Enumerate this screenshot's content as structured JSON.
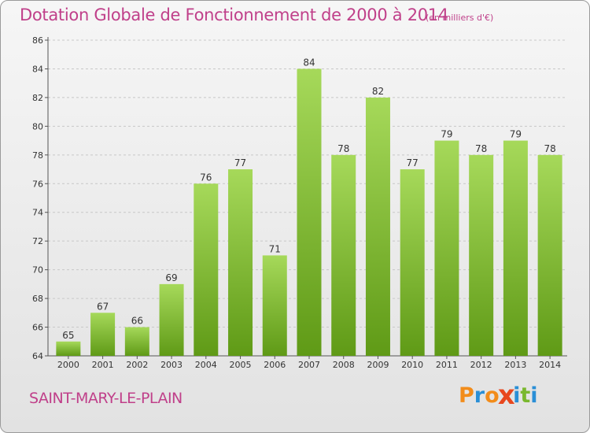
{
  "header": {
    "title": "Dotation Globale de Fonctionnement de 2000 à 2014",
    "unit": "(en milliers d'€)"
  },
  "footer": {
    "commune": "SAINT-MARY-LE-PLAIN",
    "logo_text": "Proxiti"
  },
  "colors": {
    "title": "#c0408a",
    "bar_light": "#a6d95a",
    "bar_dark": "#5f9a16",
    "logo": [
      "#f28c1a",
      "#2a8fd6",
      "#f28c1a",
      "#e8471e",
      "#2a8fd6",
      "#7ab82e",
      "#2a8fd6"
    ]
  },
  "chart_data": {
    "type": "bar",
    "title": "Dotation Globale de Fonctionnement de 2000 à 2014",
    "categories": [
      "2000",
      "2001",
      "2002",
      "2003",
      "2004",
      "2005",
      "2006",
      "2007",
      "2008",
      "2009",
      "2010",
      "2011",
      "2012",
      "2013",
      "2014"
    ],
    "values": [
      65,
      67,
      66,
      69,
      76,
      77,
      71,
      84,
      78,
      82,
      77,
      79,
      78,
      79,
      78
    ],
    "ylim": [
      64,
      86
    ],
    "yticks": [
      64,
      66,
      68,
      70,
      72,
      74,
      76,
      78,
      80,
      82,
      84,
      86
    ],
    "grid": true,
    "data_labels": true,
    "xlabel": "",
    "ylabel": ""
  }
}
